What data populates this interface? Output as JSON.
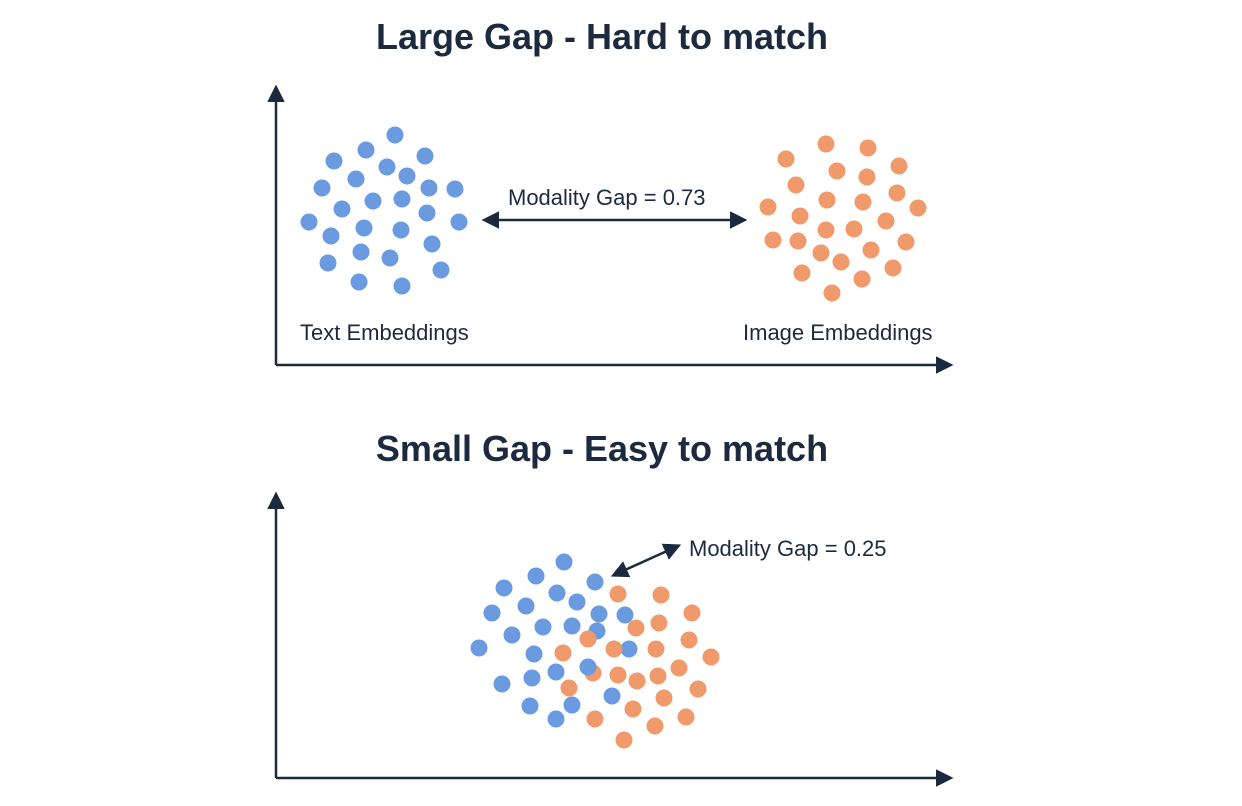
{
  "colors": {
    "text_embedding": "#6a9be0",
    "image_embedding": "#f0996a",
    "ink": "#1c2a3f"
  },
  "panels": [
    {
      "title": "Large Gap - Hard to match",
      "gap_label": "Modality Gap = 0.73",
      "modality_gap": 0.73,
      "text_label": "Text Embeddings",
      "image_label": "Image Embeddings",
      "text_point_count": 26,
      "image_point_count": 26
    },
    {
      "title": "Small Gap - Easy to match",
      "gap_label": "Modality Gap = 0.25",
      "modality_gap": 0.25,
      "text_point_count": 25,
      "image_point_count": 24
    }
  ]
}
